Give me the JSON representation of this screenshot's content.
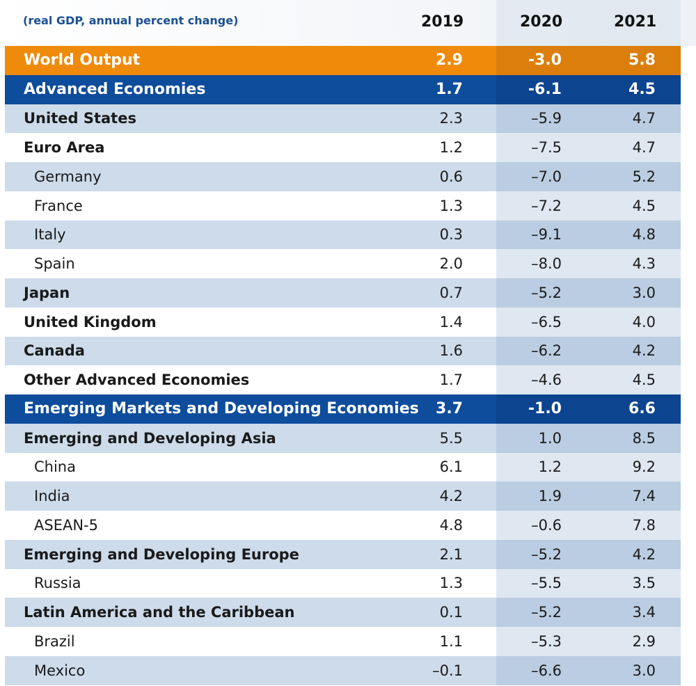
{
  "chart_data": {
    "type": "table",
    "subtitle": "(real GDP, annual percent change)",
    "columns": [
      "2019",
      "2020",
      "2021"
    ],
    "rows": [
      {
        "name": "World Output",
        "values": [
          "2.9",
          "-3.0",
          "5.8"
        ],
        "style": "orange",
        "indent": false
      },
      {
        "name": "Advanced Economies",
        "values": [
          "1.7",
          "-6.1",
          "4.5"
        ],
        "style": "blue",
        "indent": false
      },
      {
        "name": "United States",
        "values": [
          "2.3",
          "–5.9",
          "4.7"
        ],
        "style": "light",
        "indent": false
      },
      {
        "name": "Euro Area",
        "values": [
          "1.2",
          "–7.5",
          "4.7"
        ],
        "style": "white",
        "indent": false
      },
      {
        "name": "Germany",
        "values": [
          "0.6",
          "–7.0",
          "5.2"
        ],
        "style": "light",
        "indent": true
      },
      {
        "name": "France",
        "values": [
          "1.3",
          "–7.2",
          "4.5"
        ],
        "style": "white",
        "indent": true
      },
      {
        "name": "Italy",
        "values": [
          "0.3",
          "–9.1",
          "4.8"
        ],
        "style": "light",
        "indent": true
      },
      {
        "name": "Spain",
        "values": [
          "2.0",
          "–8.0",
          "4.3"
        ],
        "style": "white",
        "indent": true
      },
      {
        "name": "Japan",
        "values": [
          "0.7",
          "–5.2",
          "3.0"
        ],
        "style": "light",
        "indent": false
      },
      {
        "name": "United Kingdom",
        "values": [
          "1.4",
          "–6.5",
          "4.0"
        ],
        "style": "white",
        "indent": false
      },
      {
        "name": "Canada",
        "values": [
          "1.6",
          "–6.2",
          "4.2"
        ],
        "style": "light",
        "indent": false
      },
      {
        "name": "Other Advanced Economies",
        "values": [
          "1.7",
          "–4.6",
          "4.5"
        ],
        "style": "white",
        "indent": false
      },
      {
        "name": "Emerging Markets and Developing Economies",
        "values": [
          "3.7",
          "-1.0",
          "6.6"
        ],
        "style": "blue",
        "indent": false
      },
      {
        "name": "Emerging and Developing Asia",
        "values": [
          "5.5",
          "1.0",
          "8.5"
        ],
        "style": "light",
        "indent": false
      },
      {
        "name": "China",
        "values": [
          "6.1",
          "1.2",
          "9.2"
        ],
        "style": "white",
        "indent": true
      },
      {
        "name": "India",
        "values": [
          "4.2",
          "1.9",
          "7.4"
        ],
        "style": "light",
        "indent": true
      },
      {
        "name": "ASEAN-5",
        "values": [
          "4.8",
          "–0.6",
          "7.8"
        ],
        "style": "white",
        "indent": true
      },
      {
        "name": "Emerging and Developing Europe",
        "values": [
          "2.1",
          "–5.2",
          "4.2"
        ],
        "style": "light",
        "indent": false
      },
      {
        "name": "Russia",
        "values": [
          "1.3",
          "–5.5",
          "3.5"
        ],
        "style": "white",
        "indent": true
      },
      {
        "name": "Latin America and the Caribbean",
        "values": [
          "0.1",
          "–5.2",
          "3.4"
        ],
        "style": "light",
        "indent": false
      },
      {
        "name": "Brazil",
        "values": [
          "1.1",
          "–5.3",
          "2.9"
        ],
        "style": "white",
        "indent": true
      },
      {
        "name": "Mexico",
        "values": [
          "–0.1",
          "–6.6",
          "3.0"
        ],
        "style": "light",
        "indent": true
      }
    ]
  },
  "colors": {
    "orange": "#f08a0a",
    "blue": "#0e4c9c",
    "light": "#cddbea",
    "subtitle": "#1b4f93"
  }
}
